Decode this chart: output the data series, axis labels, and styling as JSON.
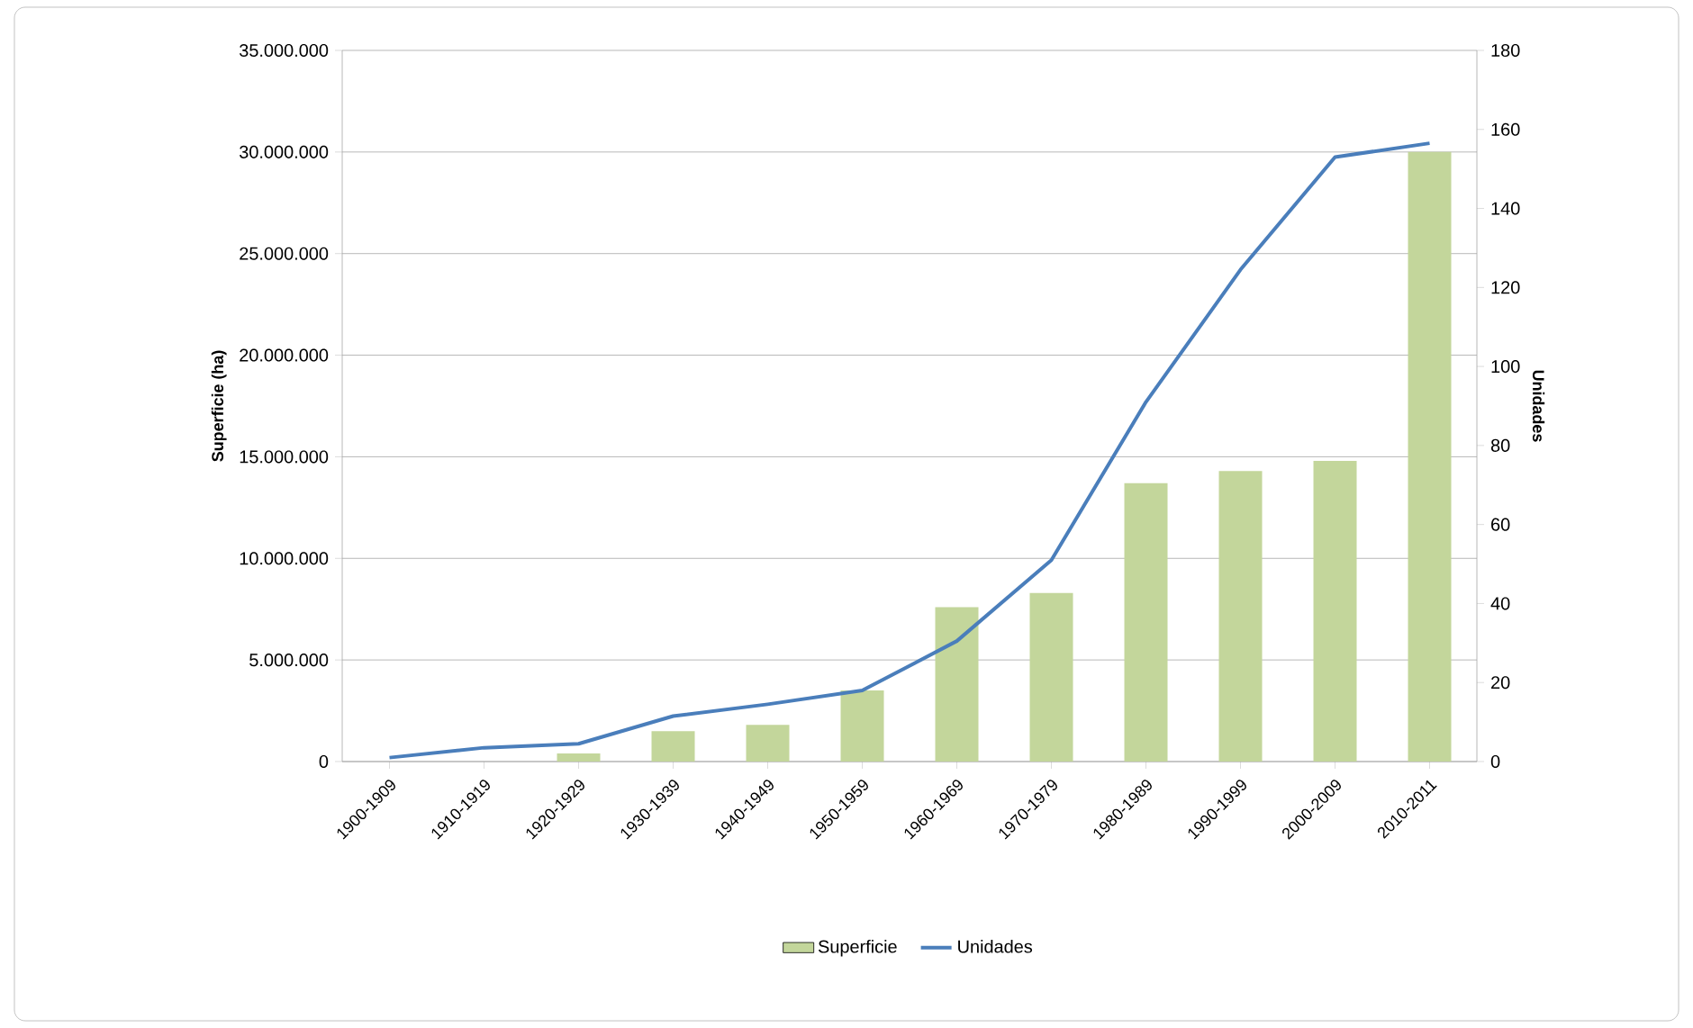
{
  "chart_data": {
    "type": "bar",
    "categories": [
      "1900-1909",
      "1910-1919",
      "1920-1929",
      "1930-1939",
      "1940-1949",
      "1950-1959",
      "1960-1969",
      "1970-1979",
      "1980-1989",
      "1990-1999",
      "2000-2009",
      "2010-2011"
    ],
    "series": [
      {
        "name": "Superficie",
        "color": "#c3d69b",
        "values": [
          0,
          0,
          400000,
          1500000,
          1800000,
          3500000,
          7600000,
          8300000,
          13700000,
          14300000,
          14800000,
          30000000
        ]
      },
      {
        "name": "Unidades",
        "type": "line",
        "axis": "y2",
        "color": "#4a7ebb",
        "values": [
          1,
          3.5,
          4.5,
          11.5,
          14.5,
          18,
          30.5,
          51,
          91,
          124.5,
          153,
          156.5
        ]
      }
    ],
    "ylabel": "Superficie (ha)",
    "y2label": "Unidades",
    "ylim": [
      0,
      35000000
    ],
    "yticks": [
      0,
      {
        "value": 5000000,
        "label": "5.000.000"
      },
      {
        "value": 10000000,
        "label": "10.000.000"
      },
      {
        "value": 15000000,
        "label": "15.000.000"
      },
      {
        "value": 20000000,
        "label": "20.000.000"
      },
      {
        "value": 25000000,
        "label": "25.000.000"
      },
      {
        "value": 30000000,
        "label": "30.000.000"
      },
      {
        "value": 35000000,
        "label": "35.000.000"
      }
    ],
    "y2lim": [
      0,
      180
    ],
    "y2ticks": [
      0,
      20,
      40,
      60,
      80,
      100,
      120,
      140,
      160,
      180
    ],
    "grid": "y",
    "legend": "bottom"
  }
}
